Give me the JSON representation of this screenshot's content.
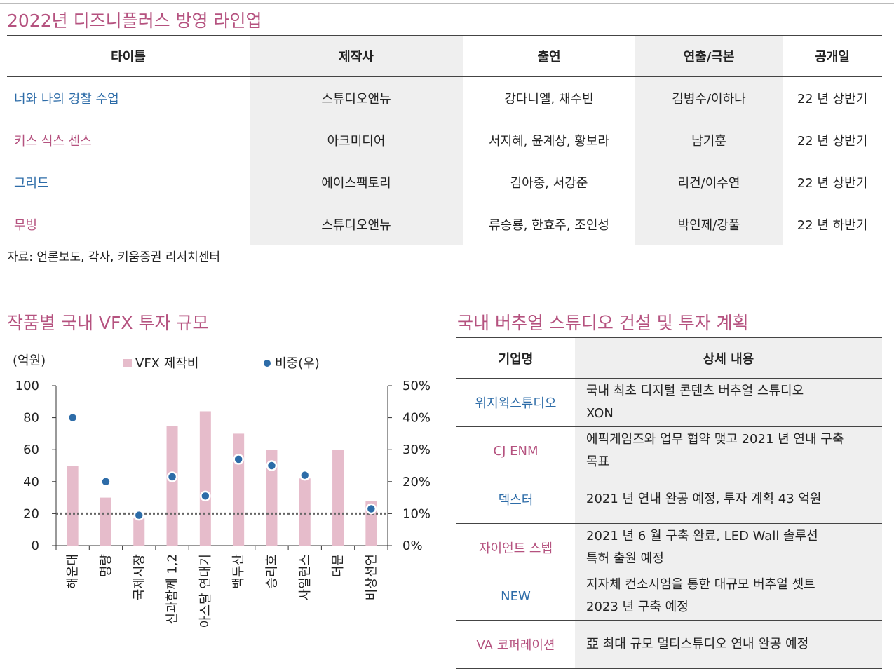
{
  "lineup": {
    "title": "2022년 디즈니플러스 방영 라인업",
    "headers": [
      "타이틀",
      "제작사",
      "출연",
      "연출/극본",
      "공개일"
    ],
    "rows": [
      {
        "title": "너와 나의 경찰 수업",
        "producer": "스튜디오앤뉴",
        "cast": "강다니엘, 채수빈",
        "director": "김병수/이하나",
        "release": "22 년 상반기",
        "title_color": "#2d6ca8"
      },
      {
        "title": "키스 식스 센스",
        "producer": "아크미디어",
        "cast": "서지혜, 윤계상, 황보라",
        "director": "남기훈",
        "release": "22 년 상반기",
        "title_color": "#b5527f"
      },
      {
        "title": "그리드",
        "producer": "에이스팩토리",
        "cast": "김아중, 서강준",
        "director": "리건/이수연",
        "release": "22 년 상반기",
        "title_color": "#2d6ca8"
      },
      {
        "title": "무빙",
        "producer": "스튜디오앤뉴",
        "cast": "류승룡, 한효주, 조인성",
        "director": "박인제/강풀",
        "release": "22 년 하반기",
        "title_color": "#b5527f"
      }
    ],
    "source": "자료: 언론보도, 각사, 키움증권 리서치센터"
  },
  "vfx_chart_title": "작품별 국내 VFX 투자 규모",
  "chart_data": {
    "type": "bar",
    "categories": [
      "해운대",
      "명량",
      "국제시장",
      "신과함께 1,2",
      "아스달 연대기",
      "백두산",
      "승리호",
      "사일런스",
      "더문",
      "비상선언"
    ],
    "series": [
      {
        "name": "VFX 제작비",
        "type": "bar",
        "axis": "left",
        "color": "#e6bccb",
        "values": [
          50,
          30,
          17,
          75,
          84,
          70,
          60,
          42,
          60,
          28
        ]
      },
      {
        "name": "비중(우)",
        "type": "scatter",
        "axis": "right",
        "color": "#2d6ca8",
        "values": [
          40,
          20,
          9.5,
          21.5,
          15.5,
          27,
          25,
          22,
          null,
          11.5
        ]
      }
    ],
    "ylabel": "(억원)",
    "ylim": [
      0,
      100
    ],
    "yticks": [
      0,
      20,
      40,
      60,
      80,
      100
    ],
    "y2lim": [
      0,
      50
    ],
    "y2ticks": [
      "0%",
      "10%",
      "20%",
      "30%",
      "40%",
      "50%"
    ],
    "reference_line_right": 10,
    "legend_position": "top"
  },
  "studio": {
    "title": "국내 버추얼 스튜디오 건설 및 투자 계획",
    "headers": [
      "기업명",
      "상세 내용"
    ],
    "rows": [
      {
        "name": "위지윅스튜디오",
        "name_color": "#2d6ca8",
        "lines": [
          "국내 최초 디지털 콘텐츠 버추얼 스튜디오",
          "XON"
        ]
      },
      {
        "name": "CJ ENM",
        "name_color": "#b5527f",
        "lines": [
          "에픽게임즈와 업무 협약 맺고 2021 년 연내 구축",
          "목표"
        ]
      },
      {
        "name": "덱스터",
        "name_color": "#2d6ca8",
        "lines": [
          "2021 년 연내 완공 예정, 투자 계획 43 억원"
        ]
      },
      {
        "name": "자이언트 스텝",
        "name_color": "#b5527f",
        "lines": [
          "2021 년 6 월 구축 완료, LED Wall 솔루션",
          "특허 출원 예정"
        ]
      },
      {
        "name": "NEW",
        "name_color": "#2d6ca8",
        "lines": [
          "지자체 컨소시엄을 통한 대규모 버추얼 셋트",
          "2023 년 구축 예정"
        ]
      },
      {
        "name": "VA 코퍼레이션",
        "name_color": "#b5527f",
        "lines": [
          "亞 최대 규모 멀티스튜디오 연내 완공 예정"
        ]
      }
    ]
  }
}
